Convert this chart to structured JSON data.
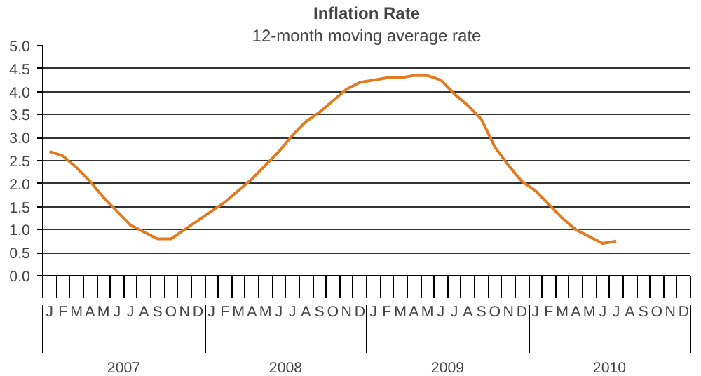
{
  "chart_data": {
    "type": "line",
    "title": "Inflation Rate",
    "subtitle": "12-month moving average rate",
    "categories": [
      "J",
      "F",
      "M",
      "A",
      "M",
      "J",
      "J",
      "A",
      "S",
      "O",
      "N",
      "D",
      "J",
      "F",
      "M",
      "A",
      "M",
      "J",
      "J",
      "A",
      "S",
      "O",
      "N",
      "D",
      "J",
      "F",
      "M",
      "A",
      "M",
      "J",
      "J",
      "A",
      "S",
      "O",
      "N",
      "D",
      "J",
      "F",
      "M",
      "A",
      "M",
      "J",
      "J",
      "A",
      "S",
      "O",
      "N",
      "D"
    ],
    "series": [
      {
        "color": "#e07b22",
        "values": [
          2.7,
          2.6,
          2.35,
          2.05,
          1.7,
          1.4,
          1.1,
          0.95,
          0.8,
          0.8,
          1.0,
          1.2,
          1.4,
          1.6,
          1.85,
          2.1,
          2.4,
          2.7,
          3.05,
          3.35,
          3.55,
          3.8,
          4.05,
          4.2,
          4.25,
          4.3,
          4.3,
          4.35,
          4.35,
          4.25,
          3.95,
          3.7,
          3.4,
          2.8,
          2.4,
          2.05,
          1.85,
          1.55,
          1.25,
          1.0,
          0.85,
          0.7,
          0.75,
          null,
          null,
          null,
          null,
          null
        ]
      }
    ],
    "annotations": [
      "2007",
      "2008",
      "2009",
      "2010"
    ],
    "ylim": [
      0,
      5
    ],
    "yticks": [
      {
        "value": 0,
        "label": "0.0"
      },
      {
        "value": 0.5,
        "label": "0.5"
      },
      {
        "value": 1,
        "label": "1.0"
      },
      {
        "value": 1.5,
        "label": "1.5"
      },
      {
        "value": 2,
        "label": "2.0"
      },
      {
        "value": 2.5,
        "label": "2.5"
      },
      {
        "value": 3,
        "label": "3.0"
      },
      {
        "value": 3.5,
        "label": "3.5"
      },
      {
        "value": 4,
        "label": "4.0"
      },
      {
        "value": 4.5,
        "label": "4.5"
      },
      {
        "value": 5,
        "label": "5.0"
      }
    ],
    "grid": "y",
    "marker": "none",
    "line_style": "solid"
  }
}
